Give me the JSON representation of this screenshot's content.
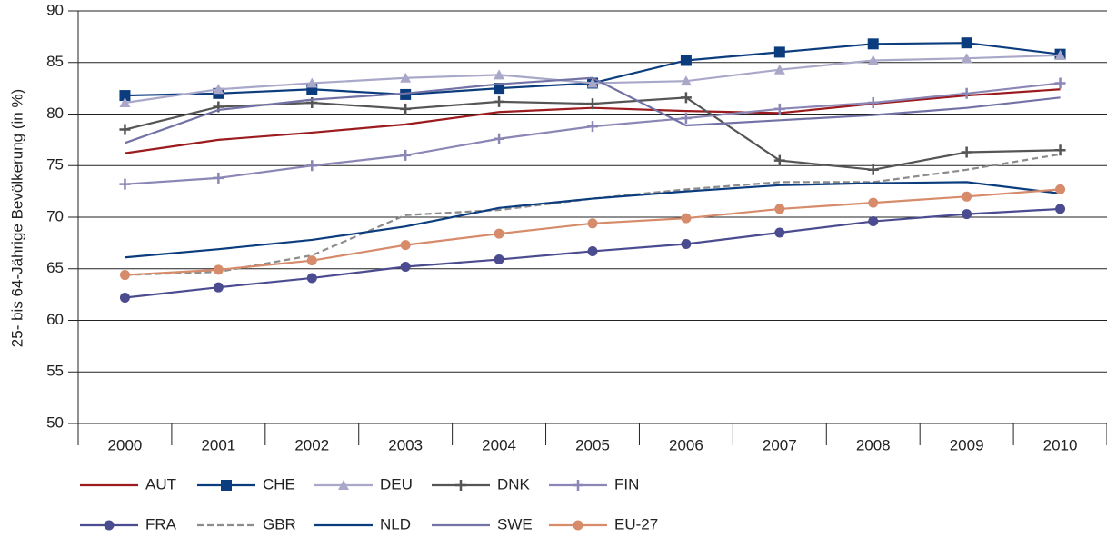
{
  "chart_data": {
    "type": "line",
    "y_label": "25- bis 64-Jährige Bevölkerung (in %)",
    "categories": [
      "2000",
      "2001",
      "2002",
      "2003",
      "2004",
      "2005",
      "2006",
      "2007",
      "2008",
      "2009",
      "2010"
    ],
    "ylim": [
      50,
      90
    ],
    "yticks": [
      50,
      55,
      60,
      65,
      70,
      75,
      80,
      85,
      90
    ],
    "grid": true,
    "series": [
      {
        "name": "AUT",
        "color": "#9b1b1e",
        "marker": "none",
        "dash": false,
        "values": [
          76.2,
          77.5,
          78.2,
          79.0,
          80.2,
          80.6,
          80.3,
          80.1,
          81.0,
          81.8,
          82.4
        ]
      },
      {
        "name": "CHE",
        "color": "#0b3d7e",
        "marker": "square",
        "dash": false,
        "values": [
          81.8,
          82.0,
          82.4,
          81.9,
          82.5,
          83.0,
          85.2,
          86.0,
          86.8,
          86.9,
          85.8
        ]
      },
      {
        "name": "DEU",
        "color": "#a9a8c9",
        "marker": "triangle",
        "dash": false,
        "values": [
          81.1,
          82.4,
          83.0,
          83.5,
          83.8,
          83.0,
          83.2,
          84.3,
          85.2,
          85.4,
          85.7
        ]
      },
      {
        "name": "DNK",
        "color": "#555555",
        "marker": "plus",
        "dash": false,
        "values": [
          78.5,
          80.7,
          81.1,
          80.5,
          81.2,
          81.0,
          81.6,
          75.5,
          74.6,
          76.3,
          76.5
        ]
      },
      {
        "name": "FIN",
        "color": "#8a86b5",
        "marker": "plus",
        "dash": false,
        "values": [
          73.2,
          73.8,
          75.0,
          76.0,
          77.6,
          78.8,
          79.6,
          80.5,
          81.1,
          82.0,
          83.0
        ]
      },
      {
        "name": "FRA",
        "color": "#4b4b90",
        "marker": "circle",
        "dash": false,
        "values": [
          62.2,
          63.2,
          64.1,
          65.2,
          65.9,
          66.7,
          67.4,
          68.5,
          69.6,
          70.3,
          70.8
        ]
      },
      {
        "name": "GBR",
        "color": "#8c8c8c",
        "marker": "none",
        "dash": true,
        "values": [
          64.4,
          64.7,
          66.3,
          70.2,
          70.7,
          71.8,
          72.7,
          73.4,
          73.4,
          74.6,
          76.1
        ]
      },
      {
        "name": "NLD",
        "color": "#0b3d7e",
        "marker": "none",
        "dash": false,
        "values": [
          66.1,
          66.9,
          67.8,
          69.1,
          70.9,
          71.8,
          72.5,
          73.1,
          73.3,
          73.4,
          72.3
        ]
      },
      {
        "name": "SWE",
        "color": "#7272a6",
        "marker": "none",
        "dash": false,
        "values": [
          77.2,
          80.4,
          81.4,
          82.0,
          82.9,
          83.5,
          78.9,
          79.4,
          79.9,
          80.6,
          81.6
        ]
      },
      {
        "name": "EU-27",
        "color": "#d68b6b",
        "marker": "circle",
        "dash": false,
        "values": [
          64.4,
          64.9,
          65.8,
          67.3,
          68.4,
          69.4,
          69.9,
          70.8,
          71.4,
          72.0,
          72.7
        ]
      }
    ]
  }
}
